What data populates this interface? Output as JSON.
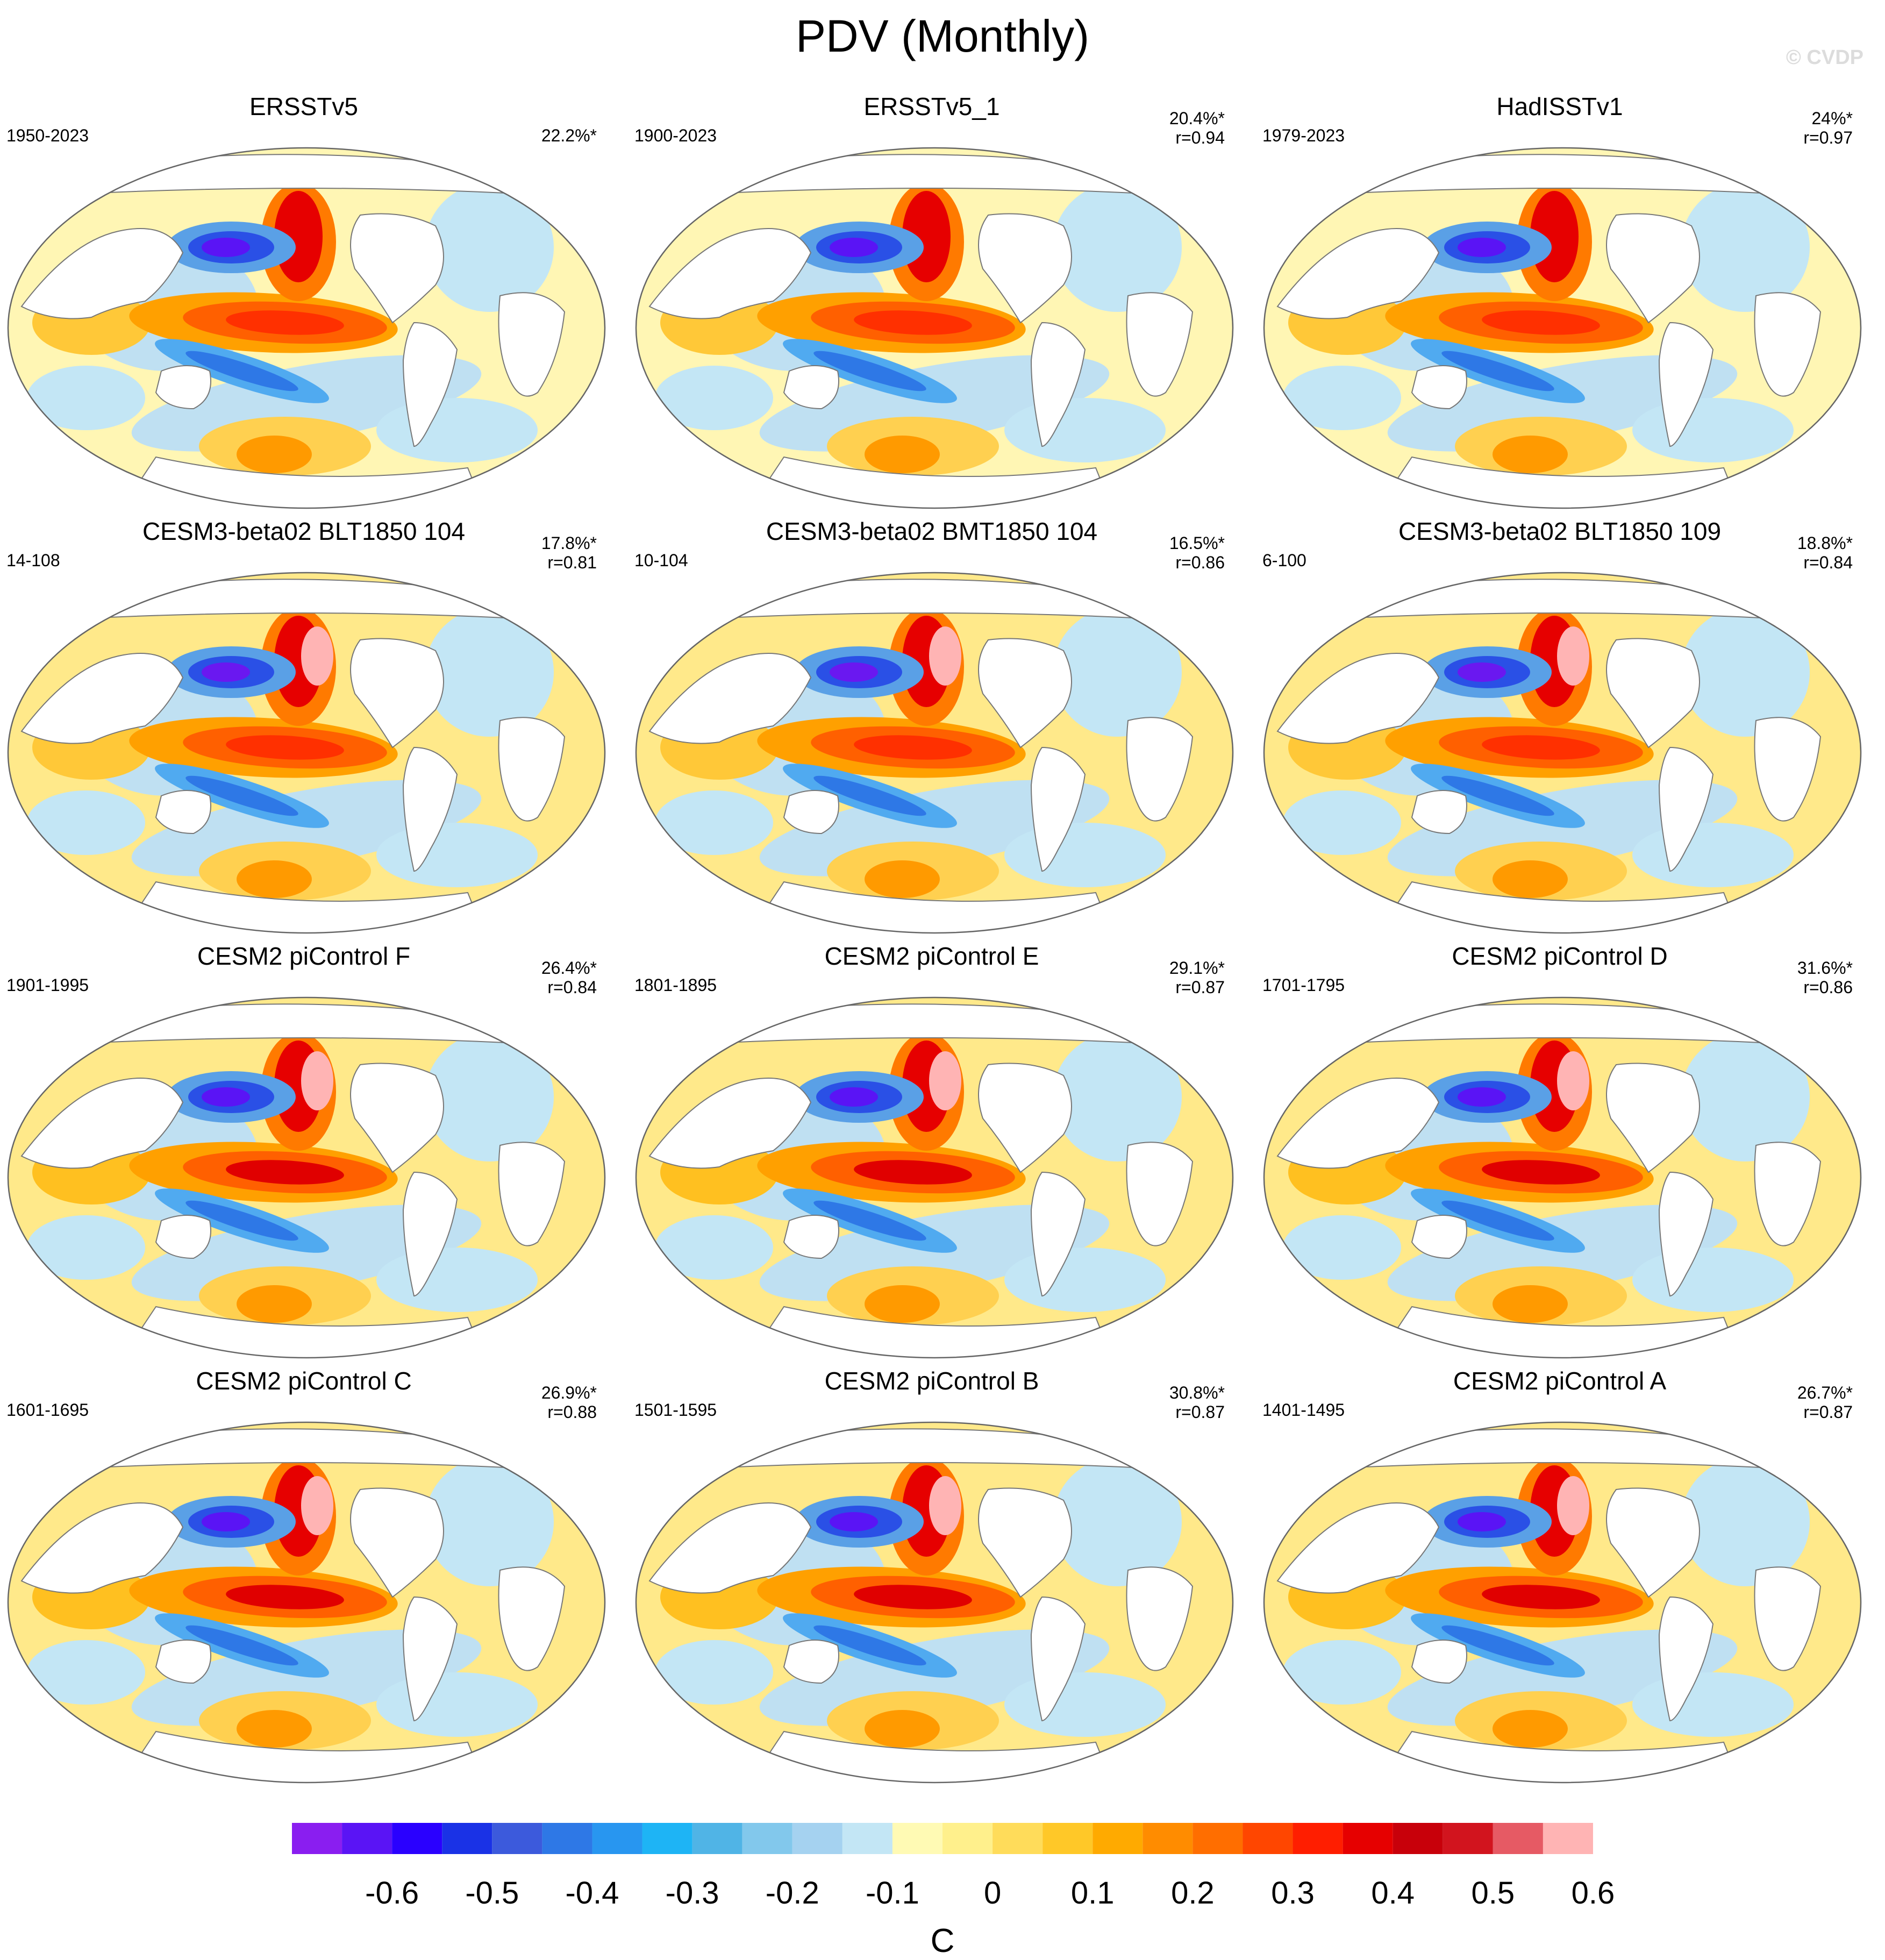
{
  "title": "PDV (Monthly)",
  "watermark": "© CVDP",
  "panels": [
    {
      "title": "ERSSTv5",
      "period": "1950-2023",
      "pct": "22.2%*",
      "corr": "",
      "pattern": "obs"
    },
    {
      "title": "ERSSTv5_1",
      "period": "1900-2023",
      "pct": "20.4%*",
      "corr": "r=0.94",
      "pattern": "obs"
    },
    {
      "title": "HadISSTv1",
      "period": "1979-2023",
      "pct": "24%*",
      "corr": "r=0.97",
      "pattern": "obs"
    },
    {
      "title": "CESM3-beta02 BLT1850 104",
      "period": "14-108",
      "pct": "17.8%*",
      "corr": "r=0.81",
      "pattern": "beta"
    },
    {
      "title": "CESM3-beta02 BMT1850 104",
      "period": "10-104",
      "pct": "16.5%*",
      "corr": "r=0.86",
      "pattern": "beta"
    },
    {
      "title": "CESM3-beta02 BLT1850 109",
      "period": "6-100",
      "pct": "18.8%*",
      "corr": "r=0.84",
      "pattern": "beta"
    },
    {
      "title": "CESM2 piControl F",
      "period": "1901-1995",
      "pct": "26.4%*",
      "corr": "r=0.84",
      "pattern": "cesm2"
    },
    {
      "title": "CESM2 piControl E",
      "period": "1801-1895",
      "pct": "29.1%*",
      "corr": "r=0.87",
      "pattern": "cesm2"
    },
    {
      "title": "CESM2 piControl D",
      "period": "1701-1795",
      "pct": "31.6%*",
      "corr": "r=0.86",
      "pattern": "cesm2"
    },
    {
      "title": "CESM2 piControl C",
      "period": "1601-1695",
      "pct": "26.9%*",
      "corr": "r=0.88",
      "pattern": "cesm2"
    },
    {
      "title": "CESM2 piControl B",
      "period": "1501-1595",
      "pct": "30.8%*",
      "corr": "r=0.87",
      "pattern": "cesm2"
    },
    {
      "title": "CESM2 piControl A",
      "period": "1401-1495",
      "pct": "26.7%*",
      "corr": "r=0.87",
      "pattern": "cesm2"
    }
  ],
  "colorbar": {
    "unit": "C",
    "tick_labels": [
      "-0.6",
      "-0.5",
      "-0.4",
      "-0.3",
      "-0.2",
      "-0.1",
      "0",
      "0.1",
      "0.2",
      "0.3",
      "0.4",
      "0.5",
      "0.6"
    ],
    "colors": [
      "#8a1ef0",
      "#5a14f5",
      "#2a00ff",
      "#1a32e6",
      "#3c5adc",
      "#2e78e6",
      "#2896f0",
      "#1eb4f5",
      "#50b4e6",
      "#82c8ec",
      "#a5d2f0",
      "#c3e6f5",
      "#fffab4",
      "#fff08c",
      "#ffdc5a",
      "#ffc828",
      "#ffaa00",
      "#ff8c00",
      "#ff6e00",
      "#ff4600",
      "#ff1e00",
      "#e60000",
      "#c8000a",
      "#d2141e",
      "#e65a64",
      "#ffb4b4"
    ]
  }
}
